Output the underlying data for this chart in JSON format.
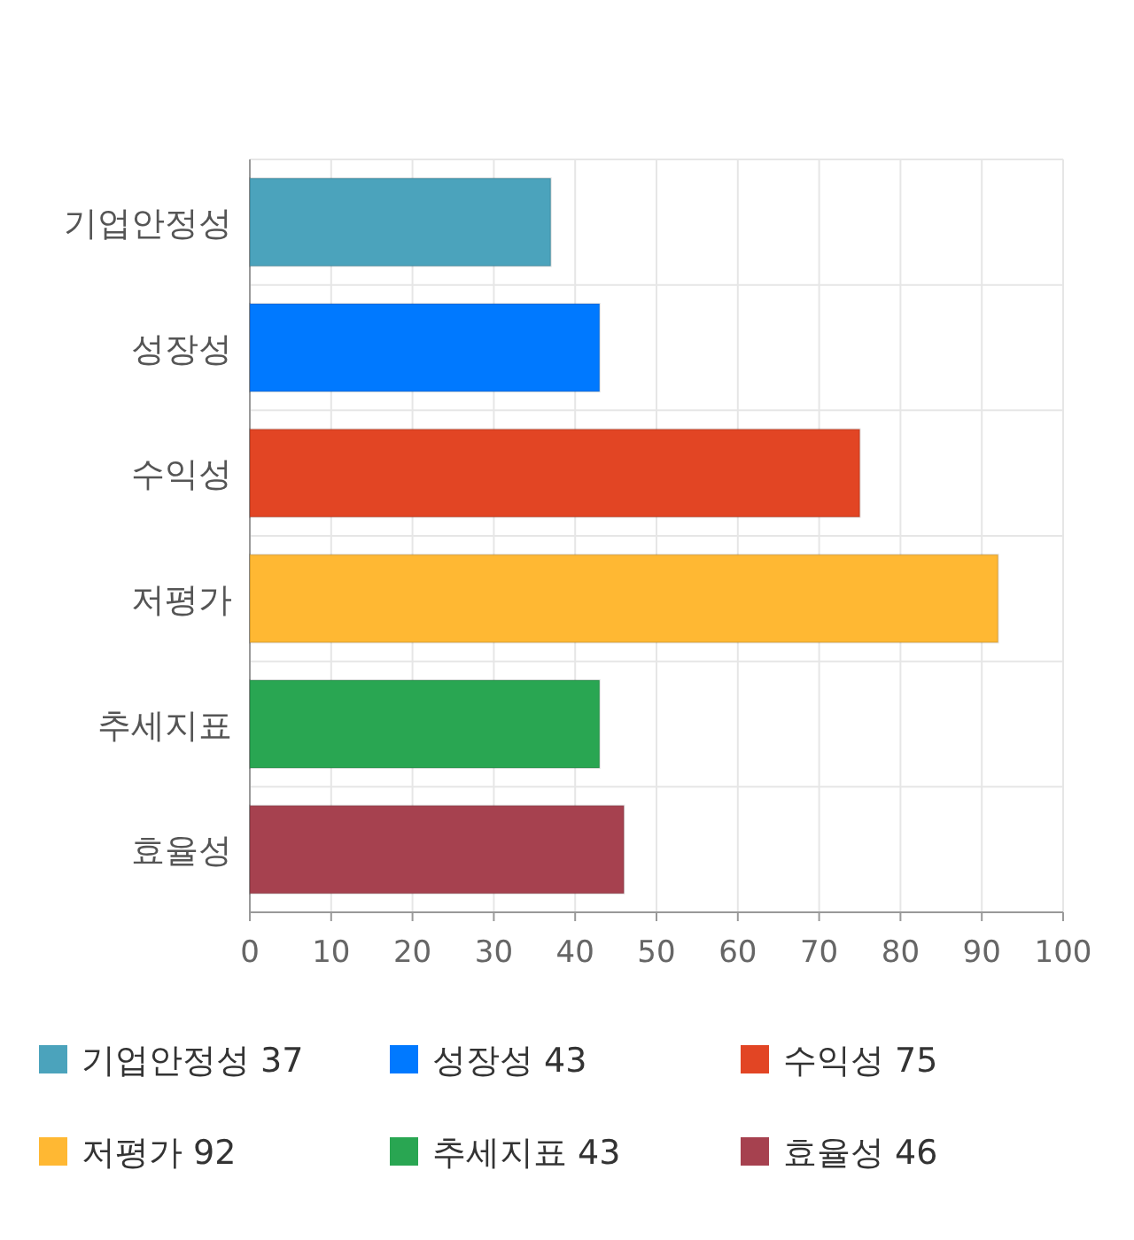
{
  "chart_data": {
    "type": "bar",
    "orientation": "horizontal",
    "stacked": true,
    "categories": [
      "기업안정성",
      "성장성",
      "수익성",
      "저평가",
      "추세지표",
      "효율성"
    ],
    "series": [
      {
        "name": "기업안정성 37",
        "color": "#4ba3bc",
        "values": [
          37,
          null,
          null,
          null,
          null,
          null
        ]
      },
      {
        "name": "성장성 43",
        "color": "#0079ff",
        "values": [
          null,
          43,
          null,
          null,
          null,
          null
        ]
      },
      {
        "name": "수익성 75",
        "color": "#e24524",
        "values": [
          null,
          null,
          75,
          null,
          null,
          null
        ]
      },
      {
        "name": "저평가 92",
        "color": "#ffb833",
        "values": [
          null,
          null,
          null,
          92,
          null,
          null
        ]
      },
      {
        "name": "추세지표 43",
        "color": "#29a652",
        "values": [
          null,
          null,
          null,
          null,
          43,
          null
        ]
      },
      {
        "name": "효율성 46",
        "color": "#a6414f",
        "values": [
          null,
          null,
          null,
          null,
          null,
          46
        ]
      }
    ],
    "xlim": [
      0,
      100
    ],
    "xticks": [
      0,
      10,
      20,
      30,
      40,
      50,
      60,
      70,
      80,
      90,
      100
    ],
    "grid": true,
    "legend": "bottom"
  }
}
